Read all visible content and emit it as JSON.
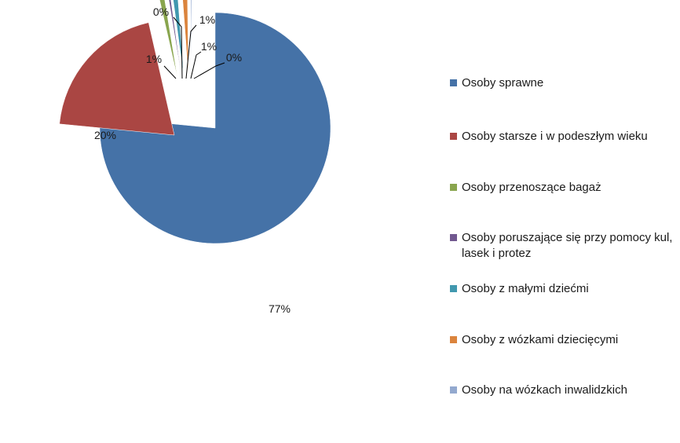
{
  "chart_data": {
    "type": "pie",
    "exploded": true,
    "legend_position": "right",
    "categories": [
      "Osoby sprawne",
      "Osoby starsze i w podeszłym wieku",
      "Osoby przenoszące bagaż",
      "Osoby poruszające się przy pomocy kul, lasek i protez",
      "Osoby z małymi dziećmi",
      "Osoby z wózkami dziecięcymi",
      "Osoby na wózkach inwalidzkich"
    ],
    "values": [
      77,
      20,
      1,
      0.4,
      1,
      1,
      0.2
    ],
    "data_labels": [
      "77%",
      "20%",
      "1%",
      "0%",
      "1%",
      "1%",
      "0%"
    ],
    "colors": [
      "#4572A7",
      "#AA4643",
      "#89A54E",
      "#71588F",
      "#4198AF",
      "#DB843D",
      "#93A9CF"
    ],
    "legend": [
      {
        "label": "Osoby sprawne",
        "color": "#4572A7"
      },
      {
        "label": "Osoby starsze i w podeszłym wieku",
        "color": "#AA4643"
      },
      {
        "label": "Osoby przenoszące bagaż",
        "color": "#89A54E"
      },
      {
        "label": "Osoby poruszające się przy pomocy kul, lasek i protez",
        "color": "#71588F"
      },
      {
        "label": "Osoby z małymi dziećmi",
        "color": "#4198AF"
      },
      {
        "label": "Osoby z wózkami dziecięcymi",
        "color": "#DB843D"
      },
      {
        "label": "Osoby na wózkach inwalidzkich",
        "color": "#93A9CF"
      }
    ]
  }
}
